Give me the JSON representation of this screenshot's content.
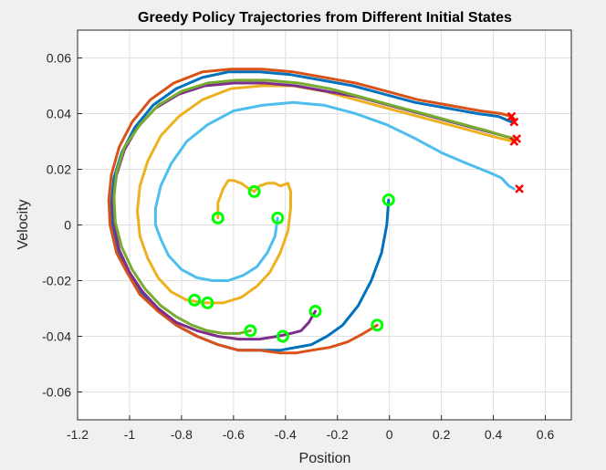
{
  "chart_data": {
    "type": "line",
    "title": "Greedy Policy Trajectories from Different Initial States",
    "xlabel": "Position",
    "ylabel": "Velocity",
    "xlim": [
      -1.2,
      0.7
    ],
    "ylim": [
      -0.07,
      0.07
    ],
    "xticks": [
      -1.2,
      -1,
      -0.8,
      -0.6,
      -0.4,
      -0.2,
      0,
      0.2,
      0.4,
      0.6
    ],
    "xtick_labels": [
      "-1.2",
      "-1",
      "-0.8",
      "-0.6",
      "-0.4",
      "-0.2",
      "0",
      "0.2",
      "0.4",
      "0.6"
    ],
    "yticks": [
      -0.06,
      -0.04,
      -0.02,
      0,
      0.02,
      0.04,
      0.06
    ],
    "ytick_labels": [
      "-0.06",
      "-0.04",
      "-0.02",
      "0",
      "0.02",
      "0.04",
      "0.06"
    ],
    "grid": true,
    "start_marker": {
      "shape": "circle",
      "color": "#00ff00"
    },
    "end_marker": {
      "shape": "x",
      "color": "#ff0000"
    },
    "series": [
      {
        "color": "#0072bd",
        "points": [
          [
            -0.003,
            0.009
          ],
          [
            -0.01,
            0.0
          ],
          [
            -0.03,
            -0.01
          ],
          [
            -0.07,
            -0.02
          ],
          [
            -0.12,
            -0.029
          ],
          [
            -0.18,
            -0.036
          ],
          [
            -0.24,
            -0.04
          ],
          [
            -0.3,
            -0.043
          ],
          [
            -0.36,
            -0.044
          ],
          [
            -0.42,
            -0.045
          ],
          [
            -0.5,
            -0.045
          ],
          [
            -0.58,
            -0.045
          ],
          [
            -0.66,
            -0.043
          ],
          [
            -0.74,
            -0.04
          ],
          [
            -0.82,
            -0.036
          ],
          [
            -0.89,
            -0.031
          ],
          [
            -0.95,
            -0.025
          ],
          [
            -1.0,
            -0.017
          ],
          [
            -1.04,
            -0.01
          ],
          [
            -1.065,
            -0.001
          ],
          [
            -1.07,
            0.008
          ],
          [
            -1.06,
            0.017
          ],
          [
            -1.03,
            0.026
          ],
          [
            -0.98,
            0.035
          ],
          [
            -0.91,
            0.043
          ],
          [
            -0.82,
            0.049
          ],
          [
            -0.72,
            0.053
          ],
          [
            -0.62,
            0.055
          ],
          [
            -0.5,
            0.055
          ],
          [
            -0.38,
            0.054
          ],
          [
            -0.26,
            0.052
          ],
          [
            -0.14,
            0.05
          ],
          [
            -0.02,
            0.047
          ],
          [
            0.1,
            0.044
          ],
          [
            0.22,
            0.042
          ],
          [
            0.34,
            0.04
          ],
          [
            0.42,
            0.039
          ],
          [
            0.47,
            0.037
          ]
        ]
      },
      {
        "color": "#d95319",
        "points": [
          [
            -0.047,
            -0.036
          ],
          [
            -0.1,
            -0.039
          ],
          [
            -0.16,
            -0.042
          ],
          [
            -0.23,
            -0.044
          ],
          [
            -0.3,
            -0.045
          ],
          [
            -0.36,
            -0.046
          ],
          [
            -0.42,
            -0.046
          ],
          [
            -0.5,
            -0.045
          ],
          [
            -0.58,
            -0.045
          ],
          [
            -0.66,
            -0.043
          ],
          [
            -0.74,
            -0.04
          ],
          [
            -0.82,
            -0.036
          ],
          [
            -0.89,
            -0.031
          ],
          [
            -0.96,
            -0.025
          ],
          [
            -1.01,
            -0.017
          ],
          [
            -1.05,
            -0.01
          ],
          [
            -1.075,
            0.0
          ],
          [
            -1.08,
            0.009
          ],
          [
            -1.07,
            0.018
          ],
          [
            -1.04,
            0.028
          ],
          [
            -0.99,
            0.037
          ],
          [
            -0.92,
            0.045
          ],
          [
            -0.83,
            0.051
          ],
          [
            -0.72,
            0.055
          ],
          [
            -0.61,
            0.056
          ],
          [
            -0.49,
            0.056
          ],
          [
            -0.37,
            0.055
          ],
          [
            -0.25,
            0.053
          ],
          [
            -0.13,
            0.051
          ],
          [
            -0.01,
            0.048
          ],
          [
            0.11,
            0.045
          ],
          [
            0.23,
            0.043
          ],
          [
            0.35,
            0.041
          ],
          [
            0.43,
            0.04
          ],
          [
            0.47,
            0.039
          ]
        ]
      },
      {
        "color": "#edb120",
        "points": [
          [
            -0.52,
            0.012
          ],
          [
            -0.5,
            0.014
          ],
          [
            -0.47,
            0.015
          ],
          [
            -0.44,
            0.015
          ],
          [
            -0.42,
            0.014
          ],
          [
            -0.39,
            0.015
          ],
          [
            -0.38,
            0.012
          ],
          [
            -0.38,
            0.006
          ],
          [
            -0.39,
            -0.002
          ],
          [
            -0.42,
            -0.01
          ],
          [
            -0.46,
            -0.017
          ],
          [
            -0.51,
            -0.022
          ],
          [
            -0.57,
            -0.026
          ],
          [
            -0.64,
            -0.028
          ],
          [
            -0.71,
            -0.028
          ],
          [
            -0.78,
            -0.027
          ],
          [
            -0.84,
            -0.024
          ],
          [
            -0.89,
            -0.019
          ],
          [
            -0.93,
            -0.012
          ],
          [
            -0.96,
            -0.004
          ],
          [
            -0.97,
            0.005
          ],
          [
            -0.96,
            0.014
          ],
          [
            -0.93,
            0.023
          ],
          [
            -0.88,
            0.032
          ],
          [
            -0.81,
            0.039
          ],
          [
            -0.72,
            0.045
          ],
          [
            -0.61,
            0.049
          ],
          [
            -0.49,
            0.05
          ],
          [
            -0.37,
            0.05
          ],
          [
            -0.25,
            0.048
          ],
          [
            -0.13,
            0.045
          ],
          [
            -0.01,
            0.042
          ],
          [
            0.11,
            0.039
          ],
          [
            0.23,
            0.036
          ],
          [
            0.35,
            0.033
          ],
          [
            0.43,
            0.031
          ],
          [
            0.48,
            0.03
          ]
        ]
      },
      {
        "color": "#7e2f8e",
        "points": [
          [
            -0.285,
            -0.031
          ],
          [
            -0.31,
            -0.035
          ],
          [
            -0.34,
            -0.038
          ],
          [
            -0.38,
            -0.039
          ],
          [
            -0.43,
            -0.04
          ],
          [
            -0.5,
            -0.041
          ],
          [
            -0.58,
            -0.041
          ],
          [
            -0.66,
            -0.04
          ],
          [
            -0.74,
            -0.038
          ],
          [
            -0.82,
            -0.035
          ],
          [
            -0.89,
            -0.03
          ],
          [
            -0.95,
            -0.024
          ],
          [
            -1.0,
            -0.017
          ],
          [
            -1.04,
            -0.009
          ],
          [
            -1.06,
            0.0
          ],
          [
            -1.065,
            0.009
          ],
          [
            -1.05,
            0.018
          ],
          [
            -1.02,
            0.027
          ],
          [
            -0.97,
            0.035
          ],
          [
            -0.9,
            0.042
          ],
          [
            -0.81,
            0.047
          ],
          [
            -0.71,
            0.05
          ],
          [
            -0.6,
            0.051
          ],
          [
            -0.48,
            0.051
          ],
          [
            -0.36,
            0.05
          ],
          [
            -0.24,
            0.048
          ],
          [
            -0.12,
            0.046
          ],
          [
            0.0,
            0.043
          ],
          [
            0.12,
            0.04
          ],
          [
            0.24,
            0.037
          ],
          [
            0.36,
            0.034
          ],
          [
            0.44,
            0.032
          ],
          [
            0.48,
            0.031
          ]
        ]
      },
      {
        "color": "#77ac30",
        "points": [
          [
            -0.535,
            -0.038
          ],
          [
            -0.58,
            -0.039
          ],
          [
            -0.64,
            -0.039
          ],
          [
            -0.7,
            -0.038
          ],
          [
            -0.76,
            -0.036
          ],
          [
            -0.82,
            -0.033
          ],
          [
            -0.88,
            -0.029
          ],
          [
            -0.94,
            -0.023
          ],
          [
            -0.99,
            -0.016
          ],
          [
            -1.03,
            -0.008
          ],
          [
            -1.055,
            0.001
          ],
          [
            -1.06,
            0.01
          ],
          [
            -1.05,
            0.019
          ],
          [
            -1.02,
            0.028
          ],
          [
            -0.96,
            0.036
          ],
          [
            -0.89,
            0.043
          ],
          [
            -0.8,
            0.048
          ],
          [
            -0.7,
            0.051
          ],
          [
            -0.59,
            0.052
          ],
          [
            -0.47,
            0.052
          ],
          [
            -0.35,
            0.051
          ],
          [
            -0.23,
            0.049
          ],
          [
            -0.11,
            0.046
          ],
          [
            0.01,
            0.043
          ],
          [
            0.13,
            0.04
          ],
          [
            0.25,
            0.037
          ],
          [
            0.37,
            0.034
          ],
          [
            0.44,
            0.032
          ],
          [
            0.48,
            0.031
          ]
        ]
      },
      {
        "color": "#4dbeee",
        "points": [
          [
            -0.43,
            0.0025
          ],
          [
            -0.44,
            -0.004
          ],
          [
            -0.47,
            -0.01
          ],
          [
            -0.51,
            -0.015
          ],
          [
            -0.56,
            -0.018
          ],
          [
            -0.62,
            -0.02
          ],
          [
            -0.68,
            -0.02
          ],
          [
            -0.74,
            -0.019
          ],
          [
            -0.8,
            -0.016
          ],
          [
            -0.85,
            -0.011
          ],
          [
            -0.88,
            -0.005
          ],
          [
            -0.9,
            0.0
          ],
          [
            -0.9,
            0.006
          ],
          [
            -0.88,
            0.014
          ],
          [
            -0.84,
            0.022
          ],
          [
            -0.78,
            0.03
          ],
          [
            -0.7,
            0.036
          ],
          [
            -0.6,
            0.041
          ],
          [
            -0.49,
            0.043
          ],
          [
            -0.37,
            0.044
          ],
          [
            -0.25,
            0.043
          ],
          [
            -0.13,
            0.04
          ],
          [
            -0.01,
            0.036
          ],
          [
            0.1,
            0.031
          ],
          [
            0.2,
            0.026
          ],
          [
            0.3,
            0.022
          ],
          [
            0.38,
            0.019
          ],
          [
            0.43,
            0.017
          ],
          [
            0.46,
            0.014
          ],
          [
            0.48,
            0.013
          ]
        ]
      },
      {
        "color": "#edb120",
        "points": [
          [
            -0.66,
            0.0025
          ],
          [
            -0.66,
            0.008
          ],
          [
            -0.64,
            0.013
          ],
          [
            -0.62,
            0.016
          ],
          [
            -0.6,
            0.016
          ],
          [
            -0.57,
            0.015
          ],
          [
            -0.54,
            0.013
          ],
          [
            -0.52,
            0.012
          ]
        ]
      }
    ],
    "starts": [
      [
        -0.003,
        0.009
      ],
      [
        -0.047,
        -0.036
      ],
      [
        -0.285,
        -0.031
      ],
      [
        -0.41,
        -0.04
      ],
      [
        -0.535,
        -0.038
      ],
      [
        -0.43,
        0.0025
      ],
      [
        -0.66,
        0.0025
      ],
      [
        -0.52,
        0.012
      ],
      [
        -0.75,
        -0.027
      ],
      [
        -0.7,
        -0.028
      ]
    ],
    "ends": [
      [
        0.47,
        0.039
      ],
      [
        0.48,
        0.037
      ],
      [
        0.49,
        0.031
      ],
      [
        0.48,
        0.03
      ],
      [
        0.5,
        0.013
      ]
    ]
  }
}
